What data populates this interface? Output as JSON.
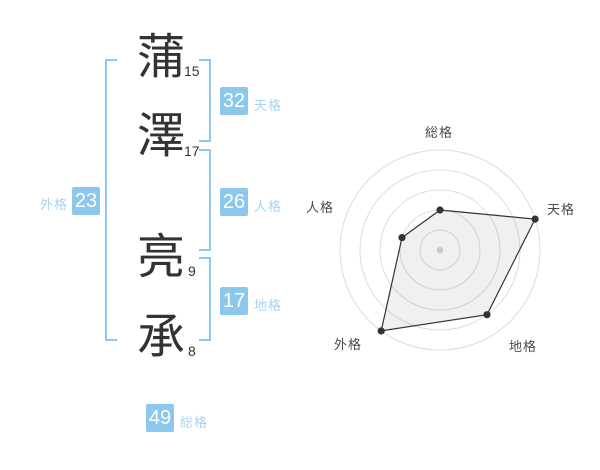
{
  "page": {
    "background": "#ffffff"
  },
  "name": {
    "full": "蒲澤 亮承",
    "characters": [
      {
        "char": "蒲",
        "strokes": "15"
      },
      {
        "char": "澤",
        "strokes": "17"
      },
      {
        "char": "亮",
        "strokes": "9"
      },
      {
        "char": "承",
        "strokes": "8"
      }
    ]
  },
  "grids": {
    "tenkaku": {
      "label": "天格",
      "value": "32"
    },
    "jinkaku": {
      "label": "人格",
      "value": "26"
    },
    "chikaku": {
      "label": "地格",
      "value": "17"
    },
    "gaikaku": {
      "label": "外格",
      "value": "23"
    },
    "soukaku": {
      "label": "総格",
      "value": "49"
    }
  },
  "colors": {
    "accent_blue": "#8CC7EC",
    "label_blue": "#A7D3F0",
    "badge_text": "#ffffff",
    "kanji_text": "#333333",
    "radar_label": "#4a4a4a"
  },
  "chart_data": {
    "type": "radar",
    "title": "",
    "categories": [
      "総格",
      "天格",
      "地格",
      "外格",
      "人格"
    ],
    "values": [
      2,
      5,
      4,
      5,
      2
    ],
    "max": 5,
    "rings": 5,
    "radius_px": 100,
    "start_angle_deg": -90,
    "direction": "clockwise",
    "legend": false,
    "ring_color": "#dcdcdc",
    "polygon_stroke": "#333333",
    "polygon_fill": "rgba(0,0,0,0.06)",
    "point_color": "#333333",
    "center_dot_color": "#c9c9c9"
  }
}
